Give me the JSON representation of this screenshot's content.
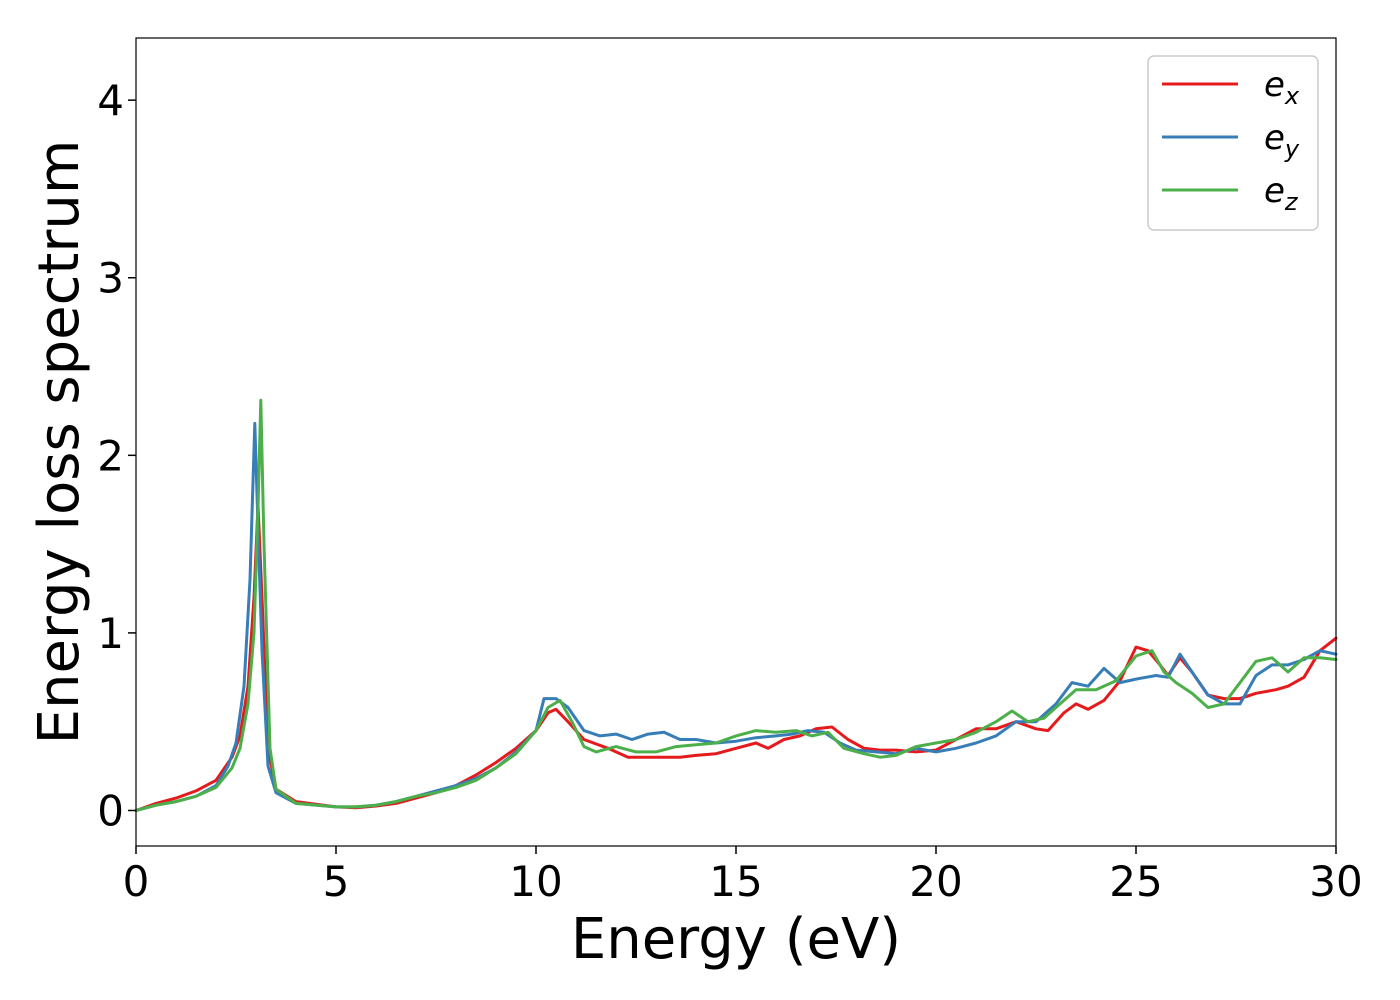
{
  "chart_data": {
    "type": "line",
    "title": "",
    "xlabel": "Energy (eV)",
    "ylabel": "Energy loss spectrum",
    "xlim": [
      0,
      30
    ],
    "ylim": [
      -0.2,
      4.35
    ],
    "xticks": [
      0,
      5,
      10,
      15,
      20,
      25,
      30
    ],
    "yticks": [
      0,
      1,
      2,
      3,
      4
    ],
    "grid": false,
    "legend_position": "top-right",
    "series": [
      {
        "name": "e_x",
        "label_base": "e",
        "label_sub": "x",
        "color": "#e41a1c",
        "points": [
          [
            0,
            0
          ],
          [
            0.5,
            0.04
          ],
          [
            1,
            0.07
          ],
          [
            1.5,
            0.11
          ],
          [
            2,
            0.17
          ],
          [
            2.4,
            0.3
          ],
          [
            2.6,
            0.42
          ],
          [
            2.8,
            0.7
          ],
          [
            2.95,
            1.2
          ],
          [
            3.05,
            1.72
          ],
          [
            3.15,
            1.2
          ],
          [
            3.3,
            0.35
          ],
          [
            3.5,
            0.12
          ],
          [
            4,
            0.05
          ],
          [
            5,
            0.02
          ],
          [
            5.5,
            0.015
          ],
          [
            6,
            0.025
          ],
          [
            6.5,
            0.04
          ],
          [
            7,
            0.07
          ],
          [
            7.5,
            0.1
          ],
          [
            8,
            0.14
          ],
          [
            8.5,
            0.2
          ],
          [
            9,
            0.27
          ],
          [
            9.5,
            0.35
          ],
          [
            10,
            0.45
          ],
          [
            10.3,
            0.55
          ],
          [
            10.5,
            0.57
          ],
          [
            10.8,
            0.5
          ],
          [
            11.2,
            0.4
          ],
          [
            11.8,
            0.35
          ],
          [
            12.3,
            0.3
          ],
          [
            12.8,
            0.3
          ],
          [
            13.2,
            0.3
          ],
          [
            13.6,
            0.3
          ],
          [
            14,
            0.31
          ],
          [
            14.5,
            0.32
          ],
          [
            15,
            0.35
          ],
          [
            15.5,
            0.38
          ],
          [
            15.8,
            0.35
          ],
          [
            16.2,
            0.4
          ],
          [
            16.6,
            0.42
          ],
          [
            17,
            0.46
          ],
          [
            17.4,
            0.47
          ],
          [
            17.8,
            0.4
          ],
          [
            18.2,
            0.35
          ],
          [
            18.6,
            0.34
          ],
          [
            19,
            0.34
          ],
          [
            19.5,
            0.33
          ],
          [
            20,
            0.34
          ],
          [
            20.5,
            0.4
          ],
          [
            21,
            0.46
          ],
          [
            21.5,
            0.46
          ],
          [
            22,
            0.5
          ],
          [
            22.5,
            0.46
          ],
          [
            22.8,
            0.45
          ],
          [
            23.2,
            0.55
          ],
          [
            23.5,
            0.6
          ],
          [
            23.8,
            0.57
          ],
          [
            24.2,
            0.62
          ],
          [
            24.6,
            0.73
          ],
          [
            25,
            0.92
          ],
          [
            25.3,
            0.9
          ],
          [
            25.6,
            0.82
          ],
          [
            25.8,
            0.76
          ],
          [
            26.1,
            0.86
          ],
          [
            26.4,
            0.78
          ],
          [
            26.8,
            0.65
          ],
          [
            27.2,
            0.63
          ],
          [
            27.6,
            0.63
          ],
          [
            28,
            0.66
          ],
          [
            28.5,
            0.68
          ],
          [
            28.8,
            0.7
          ],
          [
            29.2,
            0.75
          ],
          [
            29.6,
            0.9
          ],
          [
            30,
            0.97
          ]
        ]
      },
      {
        "name": "e_y",
        "label_base": "e",
        "label_sub": "y",
        "color": "#377eb8",
        "points": [
          [
            0,
            0
          ],
          [
            0.5,
            0.03
          ],
          [
            1,
            0.05
          ],
          [
            1.5,
            0.08
          ],
          [
            2,
            0.14
          ],
          [
            2.3,
            0.25
          ],
          [
            2.5,
            0.38
          ],
          [
            2.7,
            0.7
          ],
          [
            2.85,
            1.3
          ],
          [
            2.97,
            2.18
          ],
          [
            3.05,
            1.6
          ],
          [
            3.15,
            0.9
          ],
          [
            3.3,
            0.25
          ],
          [
            3.5,
            0.1
          ],
          [
            4,
            0.04
          ],
          [
            5,
            0.02
          ],
          [
            5.5,
            0.02
          ],
          [
            6,
            0.03
          ],
          [
            6.5,
            0.05
          ],
          [
            7,
            0.08
          ],
          [
            7.5,
            0.11
          ],
          [
            8,
            0.14
          ],
          [
            8.5,
            0.18
          ],
          [
            9,
            0.24
          ],
          [
            9.5,
            0.33
          ],
          [
            10,
            0.45
          ],
          [
            10.2,
            0.63
          ],
          [
            10.5,
            0.63
          ],
          [
            10.8,
            0.58
          ],
          [
            11.2,
            0.45
          ],
          [
            11.6,
            0.42
          ],
          [
            12,
            0.43
          ],
          [
            12.4,
            0.4
          ],
          [
            12.8,
            0.43
          ],
          [
            13.2,
            0.44
          ],
          [
            13.6,
            0.4
          ],
          [
            14,
            0.4
          ],
          [
            14.5,
            0.38
          ],
          [
            15,
            0.39
          ],
          [
            15.5,
            0.41
          ],
          [
            16,
            0.42
          ],
          [
            16.4,
            0.43
          ],
          [
            16.8,
            0.45
          ],
          [
            17.2,
            0.44
          ],
          [
            17.6,
            0.38
          ],
          [
            18,
            0.34
          ],
          [
            18.5,
            0.33
          ],
          [
            19,
            0.32
          ],
          [
            19.5,
            0.35
          ],
          [
            20,
            0.33
          ],
          [
            20.5,
            0.35
          ],
          [
            21,
            0.38
          ],
          [
            21.5,
            0.42
          ],
          [
            22,
            0.5
          ],
          [
            22.5,
            0.5
          ],
          [
            23,
            0.6
          ],
          [
            23.4,
            0.72
          ],
          [
            23.8,
            0.7
          ],
          [
            24.2,
            0.8
          ],
          [
            24.6,
            0.72
          ],
          [
            25,
            0.74
          ],
          [
            25.5,
            0.76
          ],
          [
            25.8,
            0.75
          ],
          [
            26.1,
            0.88
          ],
          [
            26.4,
            0.78
          ],
          [
            26.8,
            0.65
          ],
          [
            27.2,
            0.6
          ],
          [
            27.6,
            0.6
          ],
          [
            28,
            0.76
          ],
          [
            28.4,
            0.82
          ],
          [
            28.8,
            0.82
          ],
          [
            29.2,
            0.85
          ],
          [
            29.6,
            0.9
          ],
          [
            30,
            0.88
          ]
        ]
      },
      {
        "name": "e_z",
        "label_base": "e",
        "label_sub": "z",
        "color": "#4daf4a",
        "points": [
          [
            0,
            0
          ],
          [
            0.5,
            0.03
          ],
          [
            1,
            0.05
          ],
          [
            1.5,
            0.08
          ],
          [
            2,
            0.13
          ],
          [
            2.4,
            0.24
          ],
          [
            2.6,
            0.35
          ],
          [
            2.8,
            0.6
          ],
          [
            2.95,
            1.0
          ],
          [
            3.05,
            1.7
          ],
          [
            3.12,
            2.31
          ],
          [
            3.2,
            1.5
          ],
          [
            3.35,
            0.35
          ],
          [
            3.5,
            0.12
          ],
          [
            4,
            0.04
          ],
          [
            5,
            0.02
          ],
          [
            5.5,
            0.02
          ],
          [
            6,
            0.03
          ],
          [
            6.5,
            0.05
          ],
          [
            7,
            0.08
          ],
          [
            7.5,
            0.1
          ],
          [
            8,
            0.13
          ],
          [
            8.5,
            0.17
          ],
          [
            9,
            0.24
          ],
          [
            9.5,
            0.32
          ],
          [
            10,
            0.45
          ],
          [
            10.3,
            0.58
          ],
          [
            10.6,
            0.62
          ],
          [
            10.9,
            0.5
          ],
          [
            11.2,
            0.36
          ],
          [
            11.5,
            0.33
          ],
          [
            12,
            0.36
          ],
          [
            12.5,
            0.33
          ],
          [
            13,
            0.33
          ],
          [
            13.5,
            0.36
          ],
          [
            14,
            0.37
          ],
          [
            14.5,
            0.38
          ],
          [
            15,
            0.42
          ],
          [
            15.5,
            0.45
          ],
          [
            16,
            0.44
          ],
          [
            16.5,
            0.45
          ],
          [
            16.9,
            0.42
          ],
          [
            17.3,
            0.44
          ],
          [
            17.7,
            0.35
          ],
          [
            18.2,
            0.32
          ],
          [
            18.6,
            0.3
          ],
          [
            19,
            0.31
          ],
          [
            19.5,
            0.36
          ],
          [
            20,
            0.38
          ],
          [
            20.5,
            0.4
          ],
          [
            21,
            0.44
          ],
          [
            21.5,
            0.5
          ],
          [
            21.9,
            0.56
          ],
          [
            22.3,
            0.5
          ],
          [
            22.7,
            0.52
          ],
          [
            23.1,
            0.6
          ],
          [
            23.5,
            0.68
          ],
          [
            24,
            0.68
          ],
          [
            24.5,
            0.73
          ],
          [
            25,
            0.87
          ],
          [
            25.4,
            0.9
          ],
          [
            25.7,
            0.78
          ],
          [
            26,
            0.72
          ],
          [
            26.4,
            0.66
          ],
          [
            26.8,
            0.58
          ],
          [
            27.2,
            0.6
          ],
          [
            27.6,
            0.72
          ],
          [
            28,
            0.84
          ],
          [
            28.4,
            0.86
          ],
          [
            28.8,
            0.78
          ],
          [
            29.2,
            0.86
          ],
          [
            29.6,
            0.86
          ],
          [
            30,
            0.85
          ]
        ]
      }
    ]
  }
}
